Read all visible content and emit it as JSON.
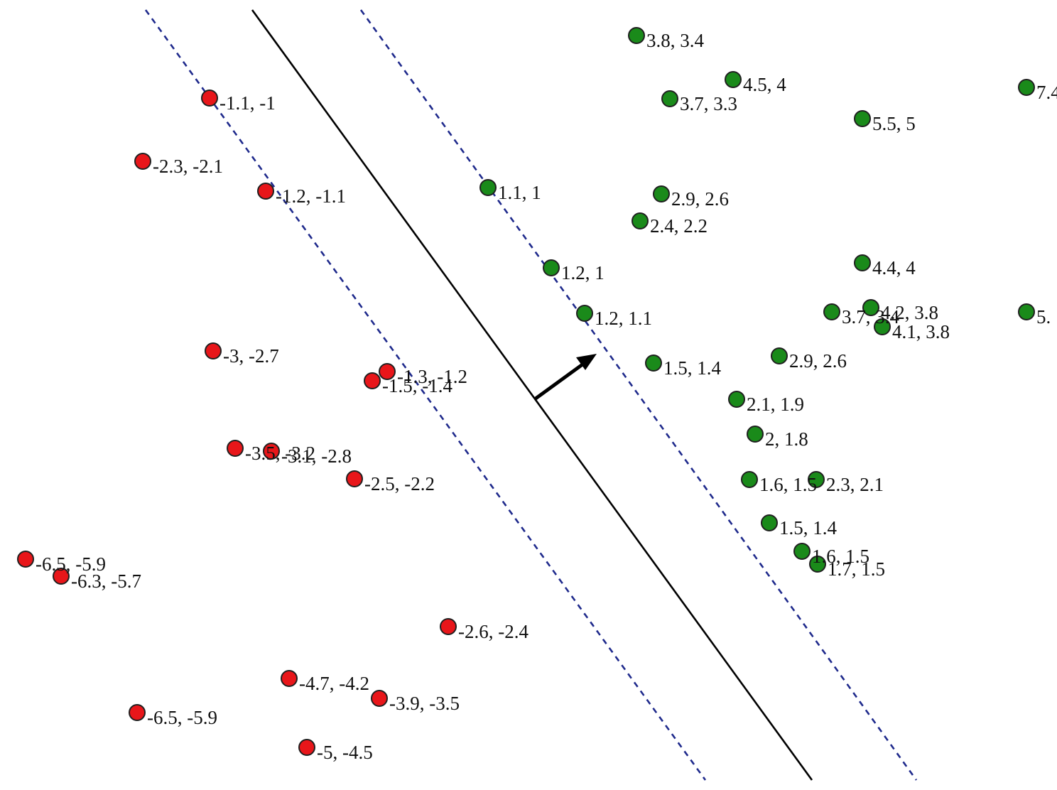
{
  "chart_data": {
    "type": "scatter",
    "title": "",
    "xlabel": "",
    "ylabel": "",
    "grid": false,
    "legend": "none",
    "colors": {
      "negative_fill": "#e8161a",
      "positive_fill": "#1a8a1a",
      "point_stroke": "#202020",
      "boundary": "#000000",
      "margin": "#1f2a8c",
      "arrow": "#000000"
    },
    "series": [
      {
        "points": [
          {
            "label": "-1.1, -1"
          },
          {
            "label": "-2.3, -2.1"
          },
          {
            "label": "-1.2, -1.1"
          },
          {
            "label": "-3, -2.7"
          },
          {
            "label": "-1.3, -1.2"
          },
          {
            "label": "-1.5, -1.4"
          },
          {
            "label": "-3.5, -3.2"
          },
          {
            "label": "-3.1, -2.8"
          },
          {
            "label": "-2.5, -2.2"
          },
          {
            "label": "-6.5, -5.9"
          },
          {
            "label": "-6.3, -5.7"
          },
          {
            "label": "-2.6, -2.4"
          },
          {
            "label": "-4.7, -4.2"
          },
          {
            "label": "-3.9, -3.5"
          },
          {
            "label": "-6.5, -5.9"
          },
          {
            "label": "-5, -4.5"
          }
        ]
      },
      {
        "points": [
          {
            "label": "3.8, 3.4"
          },
          {
            "label": "4.5, 4"
          },
          {
            "label": "3.7, 3.3"
          },
          {
            "label": "7.4"
          },
          {
            "label": "5.5, 5"
          },
          {
            "label": "1.1, 1"
          },
          {
            "label": "2.9, 2.6"
          },
          {
            "label": "2.4, 2.2"
          },
          {
            "label": "1.2, 1"
          },
          {
            "label": "4.4, 4"
          },
          {
            "label": "1.2, 1.1"
          },
          {
            "label": "3.7, 3.4"
          },
          {
            "label": "4.2, 3.8"
          },
          {
            "label": "4.1, 3.8"
          },
          {
            "label": "5."
          },
          {
            "label": "1.5, 1.4"
          },
          {
            "label": "2.9, 2.6"
          },
          {
            "label": "2.1, 1.9"
          },
          {
            "label": "2, 1.8"
          },
          {
            "label": "1.6, 1.5"
          },
          {
            "label": "2.3, 2.1"
          },
          {
            "label": "1.5, 1.4"
          },
          {
            "label": "1.6, 1.5"
          },
          {
            "label": "1.7, 1.5"
          }
        ]
      }
    ]
  }
}
